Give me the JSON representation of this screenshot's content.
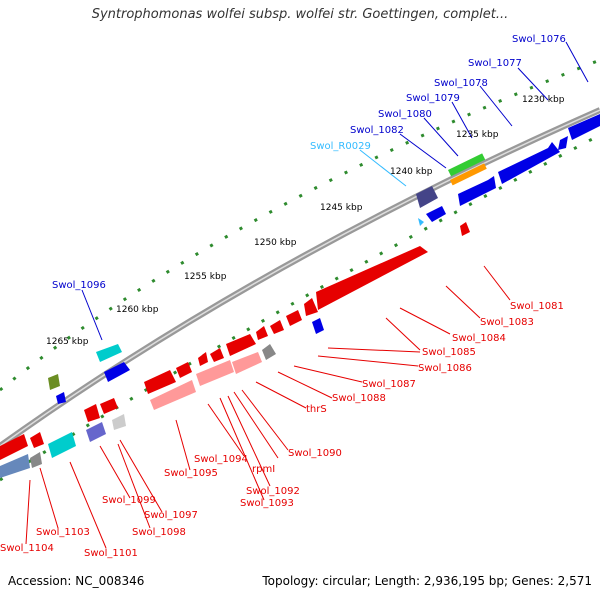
{
  "title": "Syntrophomonas wolfei subsp. wolfei str. Goettingen, complet...",
  "footer": {
    "accession": "Accession: NC_008346",
    "summary": "Topology: circular; Length: 2,936,195 bp; Genes: 2,571"
  },
  "scale_ticks": [
    "1230 kbp",
    "1235 kbp",
    "1240 kbp",
    "1245 kbp",
    "1250 kbp",
    "1255 kbp",
    "1260 kbp",
    "1265 kbp"
  ],
  "labels_top": [
    "Swol_1076",
    "Swol_1077",
    "Swol_1078",
    "Swol_1079",
    "Swol_1080",
    "Swol_1082",
    "Swol_R0029",
    "Swol_1096"
  ],
  "labels_bottom": [
    "Swol_1081",
    "Swol_1083",
    "Swol_1084",
    "Swol_1085",
    "Swol_1086",
    "Swol_1087",
    "Swol_1088",
    "thrS",
    "Swol_1090",
    "rpmI",
    "Swol_1092",
    "Swol_1093",
    "Swol_1094",
    "Swol_1095",
    "Swol_1097",
    "Swol_1098",
    "Swol_1099",
    "Swol_1101",
    "Swol_1103",
    "Swol_1104"
  ],
  "colors": {
    "forward_gene": "#0000e6",
    "reverse_gene": "#e60000",
    "rna": "#33bbff",
    "backbone": "#888888",
    "tick": "#2e8b2e"
  }
}
